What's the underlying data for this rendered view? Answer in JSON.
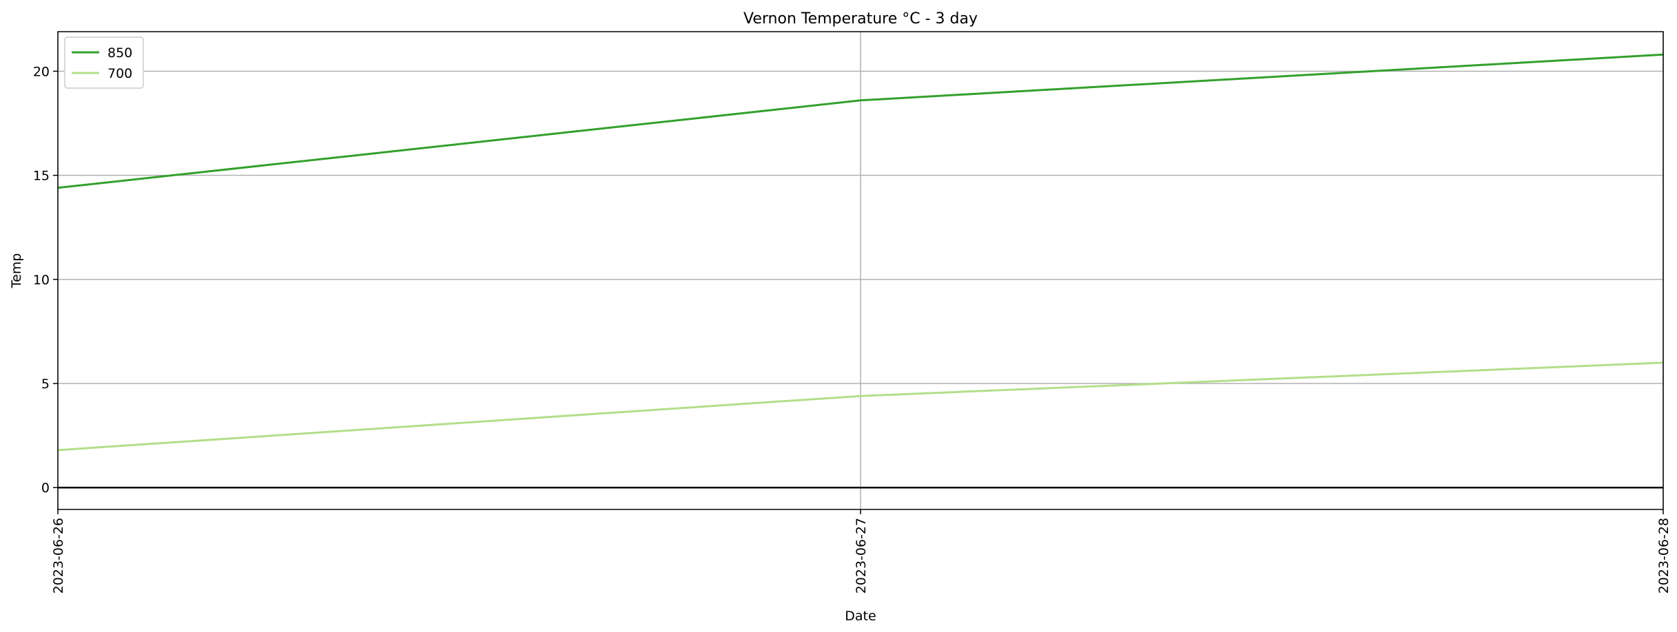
{
  "chart_data": {
    "type": "line",
    "title": "Vernon Temperature °C - 3 day",
    "xlabel": "Date",
    "ylabel": "Temp",
    "x": [
      "2023-06-26",
      "2023-06-27",
      "2023-06-28"
    ],
    "series": [
      {
        "name": "850",
        "values": [
          14.4,
          18.6,
          20.8
        ],
        "color": "#33a02c"
      },
      {
        "name": "700",
        "values": [
          1.8,
          4.4,
          6.0
        ],
        "color": "#b2df8a"
      }
    ],
    "yticks": [
      0,
      5,
      10,
      15,
      20
    ],
    "ylim": [
      -1.05,
      21.9
    ],
    "grid": true,
    "zero_line": true,
    "legend": "top-left"
  }
}
